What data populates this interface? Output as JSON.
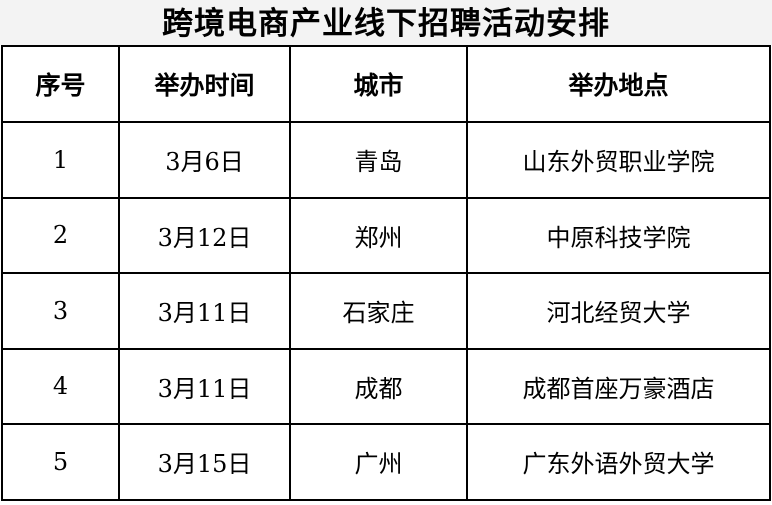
{
  "title": "跨境电商产业线下招聘活动安排",
  "headers": [
    "序号",
    "举办时间",
    "城市",
    "举办地点"
  ],
  "rows": [
    [
      "1",
      "3月6日",
      "青岛",
      "山东外贸职业学院"
    ],
    [
      "2",
      "3月12日",
      "郑州",
      "中原科技学院"
    ],
    [
      "3",
      "3月11日",
      "石家庄",
      "河北经贸大学"
    ],
    [
      "4",
      "3月11日",
      "成都",
      "成都首座万豪酒店"
    ],
    [
      "5",
      "3月15日",
      "广州",
      "广东外语外贸大学"
    ]
  ]
}
